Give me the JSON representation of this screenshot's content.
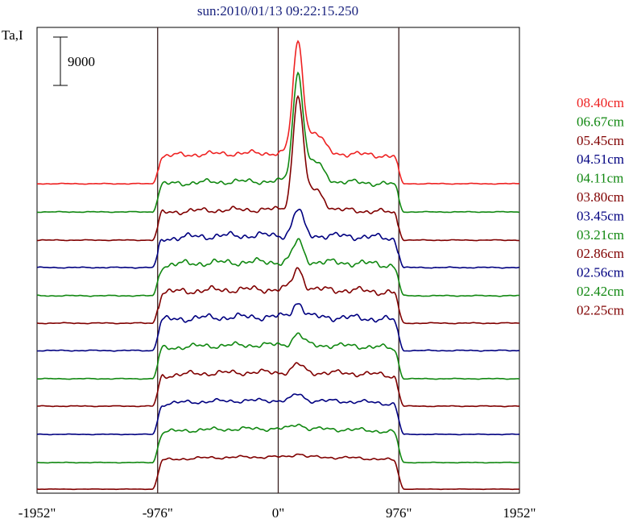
{
  "chart_data": {
    "type": "line",
    "title": "sun:2010/01/13 09:22:15.250",
    "ylabel": "Ta,I",
    "scale_bar_label": "9000",
    "xlim": [
      -1952,
      1952
    ],
    "xticks": [
      {
        "value": -1952,
        "label": "-1952\""
      },
      {
        "value": -976,
        "label": "-976\""
      },
      {
        "value": 0,
        "label": "0\""
      },
      {
        "value": 976,
        "label": "976\""
      },
      {
        "value": 1952,
        "label": "1952\""
      }
    ],
    "vlines": [
      -976,
      0,
      976
    ],
    "grid": false,
    "legend_position": "right",
    "series": [
      {
        "name": "08.40cm",
        "color": "#ee2222",
        "baseline": 228,
        "disk": 38,
        "peak": 137,
        "bumps": 4
      },
      {
        "name": "06.67cm",
        "color": "#118811",
        "baseline": 263,
        "disk": 38,
        "peak": 134,
        "bumps": 4
      },
      {
        "name": "05.45cm",
        "color": "#800000",
        "baseline": 298,
        "disk": 38,
        "peak": 140,
        "bumps": 4
      },
      {
        "name": "04.51cm",
        "color": "#000080",
        "baseline": 332,
        "disk": 40,
        "peak": 32,
        "bumps": 5
      },
      {
        "name": "04.11cm",
        "color": "#118811",
        "baseline": 367,
        "disk": 42,
        "peak": 26,
        "bumps": 5
      },
      {
        "name": "03.80cm",
        "color": "#800000",
        "baseline": 401,
        "disk": 42,
        "peak": 26,
        "bumps": 5
      },
      {
        "name": "03.45cm",
        "color": "#000080",
        "baseline": 435,
        "disk": 42,
        "peak": 18,
        "bumps": 5
      },
      {
        "name": "03.21cm",
        "color": "#118811",
        "baseline": 470,
        "disk": 42,
        "peak": 14,
        "bumps": 4
      },
      {
        "name": "02.86cm",
        "color": "#800000",
        "baseline": 504,
        "disk": 42,
        "peak": 10,
        "bumps": 4
      },
      {
        "name": "02.56cm",
        "color": "#000080",
        "baseline": 539,
        "disk": 42,
        "peak": 8,
        "bumps": 3
      },
      {
        "name": "02.42cm",
        "color": "#118811",
        "baseline": 574,
        "disk": 42,
        "peak": 6,
        "bumps": 3
      },
      {
        "name": "02.25cm",
        "color": "#800000",
        "baseline": 607,
        "disk": 40,
        "peak": 4,
        "bumps": 2
      }
    ]
  }
}
